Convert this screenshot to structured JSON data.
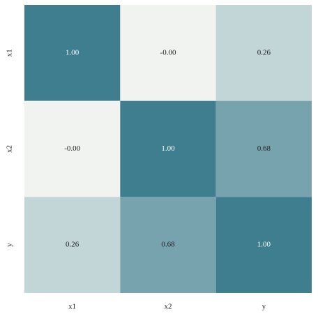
{
  "chart_data": {
    "type": "heatmap",
    "x_categories": [
      "x1",
      "x2",
      "y"
    ],
    "y_categories": [
      "x1",
      "x2",
      "y"
    ],
    "values": [
      [
        1.0,
        -0.001,
        0.26
      ],
      [
        -0.001,
        1.0,
        0.68
      ],
      [
        0.26,
        0.68,
        1.0
      ]
    ],
    "value_labels": [
      [
        "1.00",
        "-0.00",
        "0.26"
      ],
      [
        "-0.00",
        "1.00",
        "0.68"
      ],
      [
        "0.26",
        "0.68",
        "1.00"
      ]
    ],
    "clim": [
      0,
      1
    ],
    "colormap": [
      "#f1f3f0",
      "#3e7e8f"
    ]
  }
}
